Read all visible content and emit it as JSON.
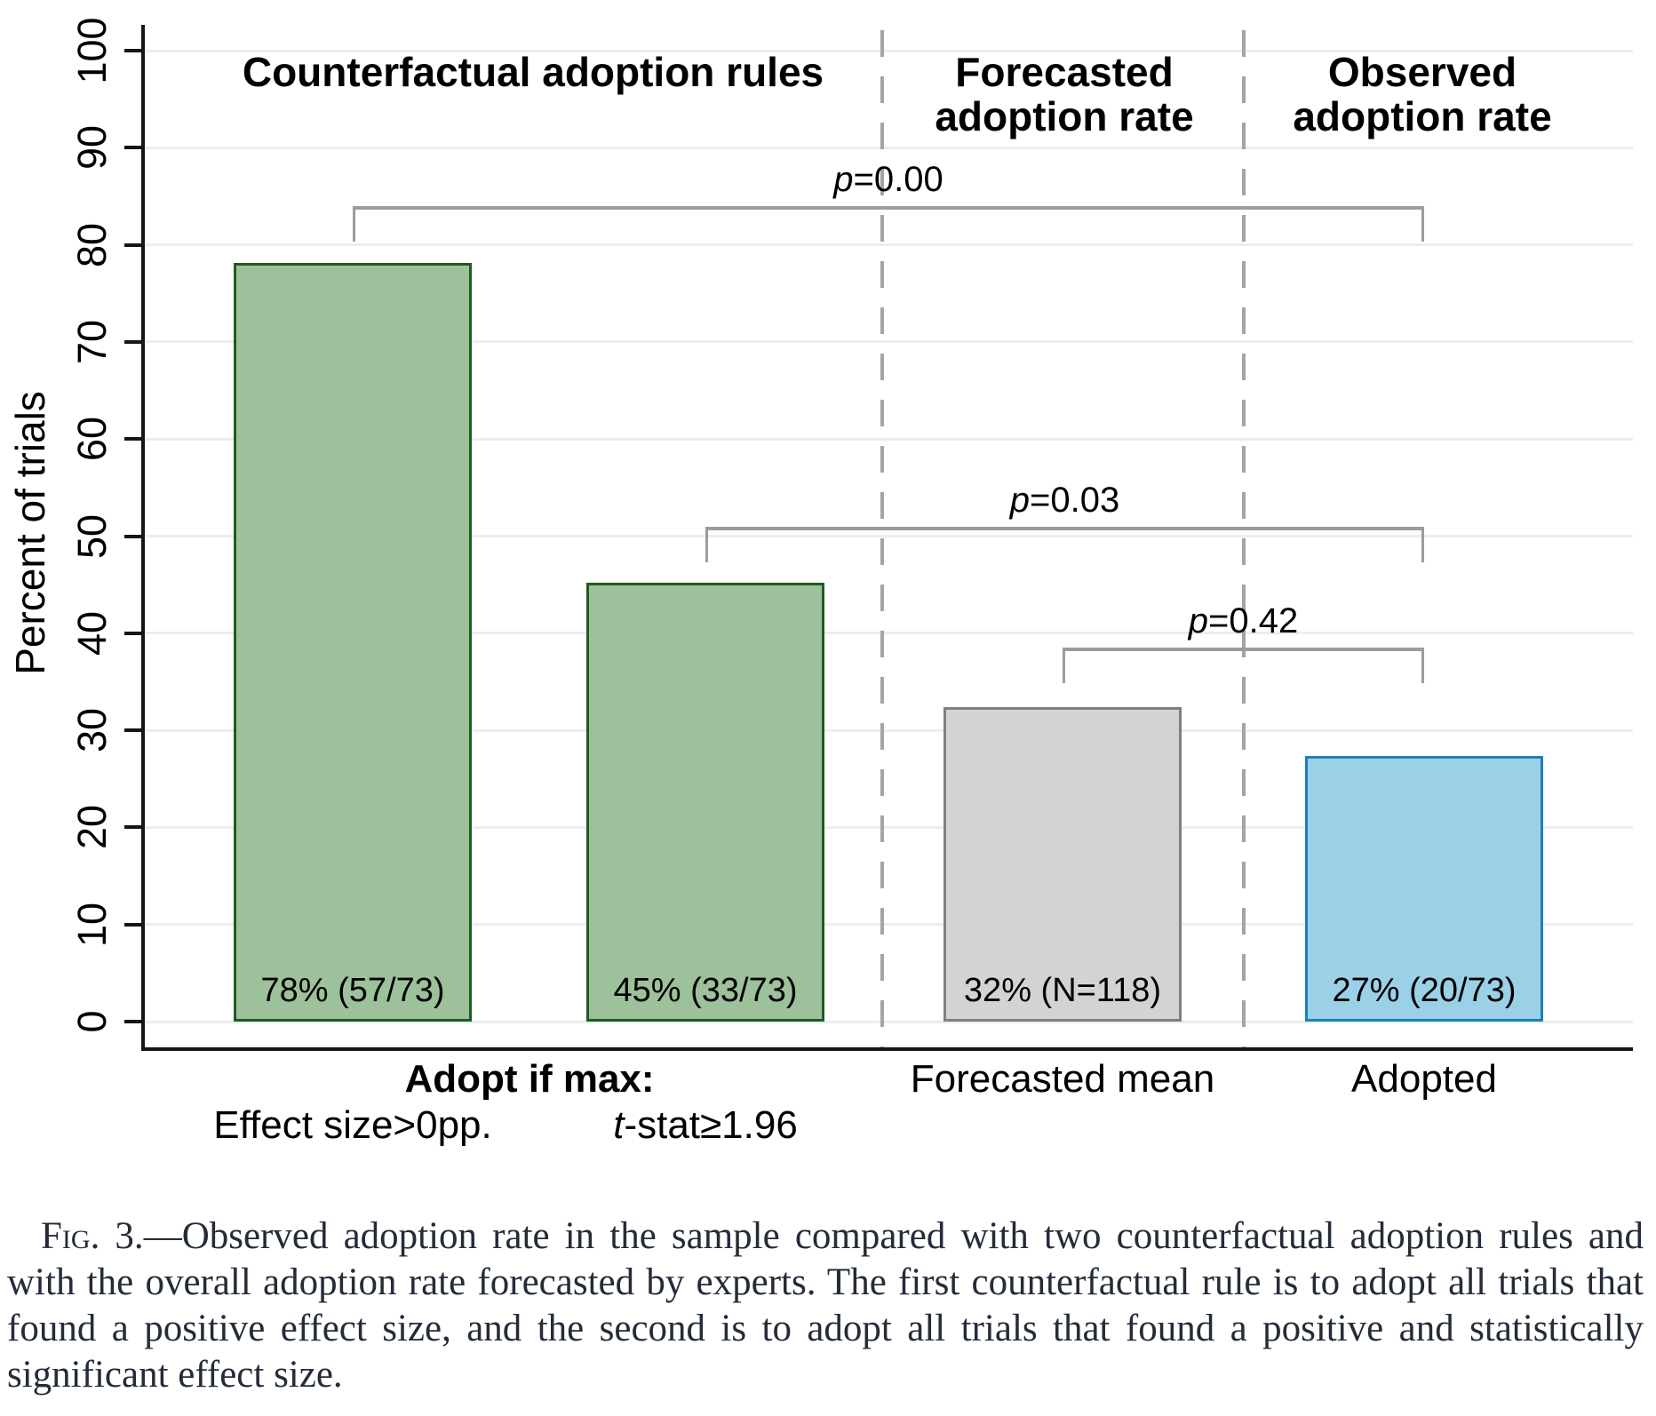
{
  "caption": {
    "label": "Fig. 3.",
    "body": "—Observed adoption rate in the sample compared with two counterfactual adoption rules and with the overall adoption rate forecasted by experts. The first counterfactual rule is to adopt all trials that found a positive effect size, and the second is to adopt all trials that found a positive and statistically significant effect size."
  },
  "chart_data": {
    "type": "bar",
    "ylabel": "Percent of trials",
    "ylim": [
      0,
      100
    ],
    "yticks": [
      0,
      10,
      20,
      30,
      40,
      50,
      60,
      70,
      80,
      90,
      100
    ],
    "grid": true,
    "legend_position": "none",
    "sections": [
      {
        "name": "counterfactual-adoption-rules",
        "lines": [
          "Counterfactual adoption rules"
        ]
      },
      {
        "name": "forecasted-adoption-rate",
        "lines": [
          "Forecasted",
          "adoption rate"
        ]
      },
      {
        "name": "observed-adoption-rate",
        "lines": [
          "Observed",
          "adoption rate"
        ]
      }
    ],
    "bars": [
      {
        "value": 78.1,
        "label": "78% (57/73)",
        "color": "green"
      },
      {
        "value": 45.2,
        "label": "45% (33/73)",
        "color": "green"
      },
      {
        "value": 32.4,
        "label": "32% (N=118)",
        "color": "gray"
      },
      {
        "value": 27.4,
        "label": "27% (20/73)",
        "color": "blue"
      }
    ],
    "x_labels": {
      "group": {
        "text": "Adopt if max:",
        "bold": true,
        "row": 1,
        "between_bars": [
          0,
          1
        ]
      },
      "items": [
        {
          "bar": 0,
          "row": 2,
          "italic": "",
          "text": "Effect size>0pp."
        },
        {
          "bar": 1,
          "row": 2,
          "italic": "t",
          "text": "-stat≥1.96"
        },
        {
          "bar": 2,
          "row": 1,
          "italic": "",
          "text": "Forecasted mean"
        },
        {
          "bar": 3,
          "row": 1,
          "italic": "",
          "text": "Adopted"
        }
      ]
    },
    "p_brackets": [
      {
        "italic": "p",
        "text": "=0.00",
        "from_bar": 0,
        "to_bar": 3,
        "y_value": 84
      },
      {
        "italic": "p",
        "text": "=0.03",
        "from_bar": 1,
        "to_bar": 3,
        "y_value": 51
      },
      {
        "italic": "p",
        "text": "=0.42",
        "from_bar": 2,
        "to_bar": 3,
        "y_value": 38.5
      }
    ],
    "colors": {
      "green_fill": "#9dc19a",
      "green_border": "#1e5c20",
      "gray_fill": "#d3d3d3",
      "gray_border": "#7f7f7f",
      "blue_fill": "#9bd1e6",
      "blue_border": "#1b80ba",
      "gridline": "#e7f0ee",
      "separator": "#a4a4a4",
      "bracket": "#9c9c9c",
      "axis": "#161616",
      "text": "#000000"
    }
  }
}
